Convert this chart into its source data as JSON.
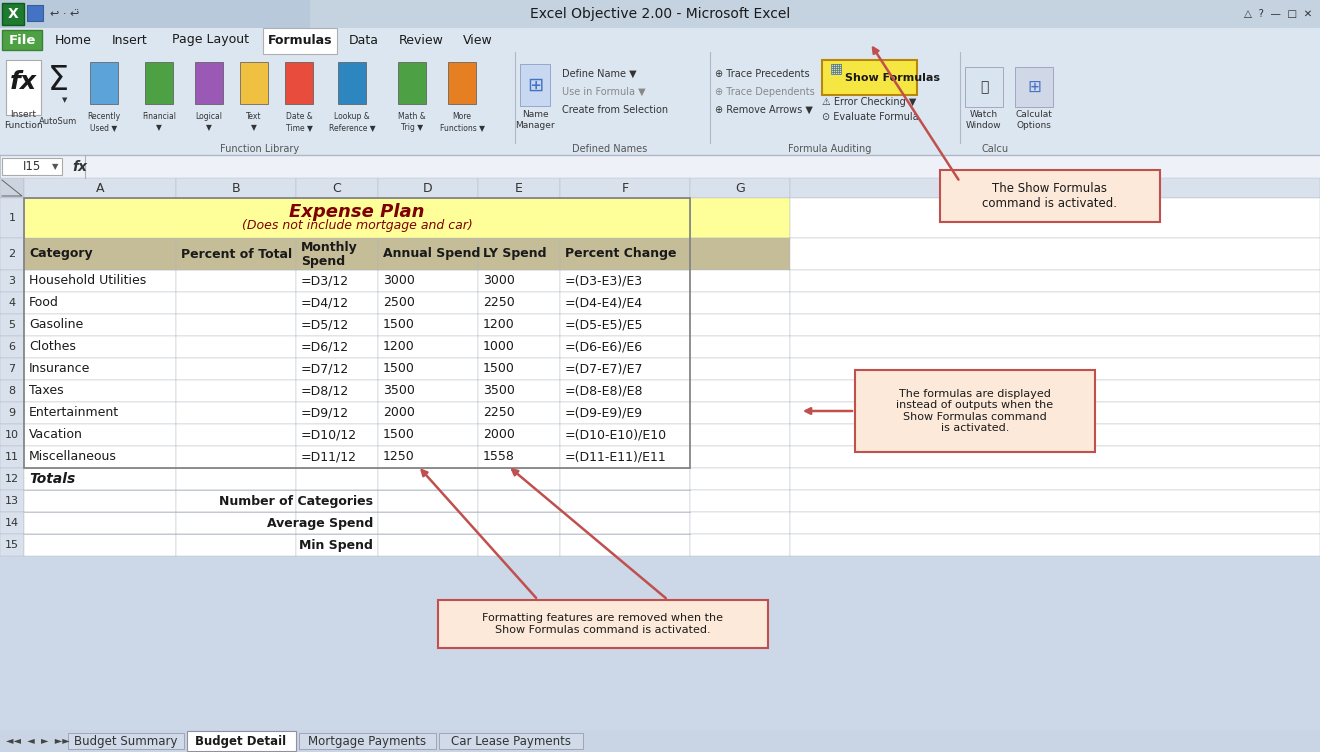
{
  "title": "Excel Objective 2.00 - Microsoft Excel",
  "sheet_title": "Expense Plan",
  "sheet_subtitle": "(Does not include mortgage and car)",
  "tab_names": [
    "Budget Summary",
    "Budget Detail",
    "Mortgage Payments",
    "Car Lease Payments"
  ],
  "active_tab": "Budget Detail",
  "menu_tabs": [
    "File",
    "Home",
    "Insert",
    "Page Layout",
    "Formulas",
    "Data",
    "Review",
    "View"
  ],
  "active_menu_tab": "Formulas",
  "col_headers": [
    "A",
    "B",
    "C",
    "D",
    "E",
    "F",
    "G"
  ],
  "headers": [
    "Category",
    "Percent of Total",
    "Monthly\nSpend",
    "Annual Spend",
    "LY Spend",
    "Percent Change"
  ],
  "categories": [
    "Household Utilities",
    "Food",
    "Gasoline",
    "Clothes",
    "Insurance",
    "Taxes",
    "Entertainment",
    "Vacation",
    "Miscellaneous"
  ],
  "col_c": [
    "=D3/12",
    "=D4/12",
    "=D5/12",
    "=D6/12",
    "=D7/12",
    "=D8/12",
    "=D9/12",
    "=D10/12",
    "=D11/12"
  ],
  "col_d": [
    "3000",
    "2500",
    "1500",
    "1200",
    "1500",
    "3500",
    "2000",
    "1500",
    "1250"
  ],
  "col_e": [
    "3000",
    "2250",
    "1200",
    "1000",
    "1500",
    "3500",
    "2250",
    "2000",
    "1558"
  ],
  "col_f": [
    "=(D3-E3)/E3",
    "=(D4-E4)/E4",
    "=(D5-E5)/E5",
    "=(D6-E6)/E6",
    "=(D7-E7)/E7",
    "=(D8-E8)/E8",
    "=(D9-E9)/E9",
    "=(D10-E10)/E10",
    "=(D11-E11)/E11"
  ],
  "row12_label": "Totals",
  "row13_label": "Number of Categories",
  "row14_label": "Average Spend",
  "row15_label": "Min Spend",
  "callout1_text": "The Show Formulas\ncommand is activated.",
  "callout2_text": "The formulas are displayed\ninstead of outputs when the\nShow Formulas command\nis activated.",
  "callout3_text": "Formatting features are removed when the\nShow Formulas command is activated.",
  "bg_color": "#ccd7e8",
  "ribbon_bg": "#dce6f1",
  "header_row_color": "#c4bd97",
  "title_bg_color": "#ffff99",
  "callout_bg": "#fde9d9",
  "callout_border": "#c0504d",
  "row_num_bg": "#d9e1ec",
  "col_header_bg": "#d9e1ec",
  "titlebar_bg": "#c5d2e0",
  "menubar_bg": "#dce6f1",
  "formula_bar_bg": "#eef2f8",
  "tab_bar_bg": "#c9d5e5",
  "tab_active_bg": "#ffffff",
  "tab_inactive_bg": "#d0dae8",
  "file_btn_color": "#4ea045",
  "show_formulas_bg": "#f5e642"
}
